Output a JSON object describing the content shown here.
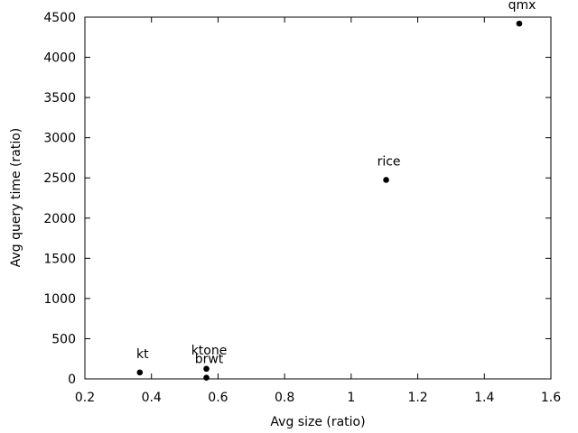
{
  "chart_data": {
    "type": "scatter",
    "title": "",
    "xlabel": "Avg size (ratio)",
    "ylabel": "Avg query time (ratio)",
    "xlim": [
      0.2,
      1.6
    ],
    "ylim": [
      0,
      4500
    ],
    "xticks": [
      0.2,
      0.4,
      0.6,
      0.8,
      1,
      1.2,
      1.4,
      1.6
    ],
    "yticks": [
      0,
      500,
      1000,
      1500,
      2000,
      2500,
      3000,
      3500,
      4000,
      4500
    ],
    "grid": false,
    "legend": "none",
    "points": [
      {
        "label": "qmx",
        "x": 1.505,
        "y": 4420
      },
      {
        "label": "rice",
        "x": 1.105,
        "y": 2475
      },
      {
        "label": "kt",
        "x": 0.365,
        "y": 80
      },
      {
        "label": "ktone",
        "x": 0.565,
        "y": 125
      },
      {
        "label": "brwt",
        "x": 0.565,
        "y": 15
      }
    ],
    "marker_color": "#000000"
  }
}
